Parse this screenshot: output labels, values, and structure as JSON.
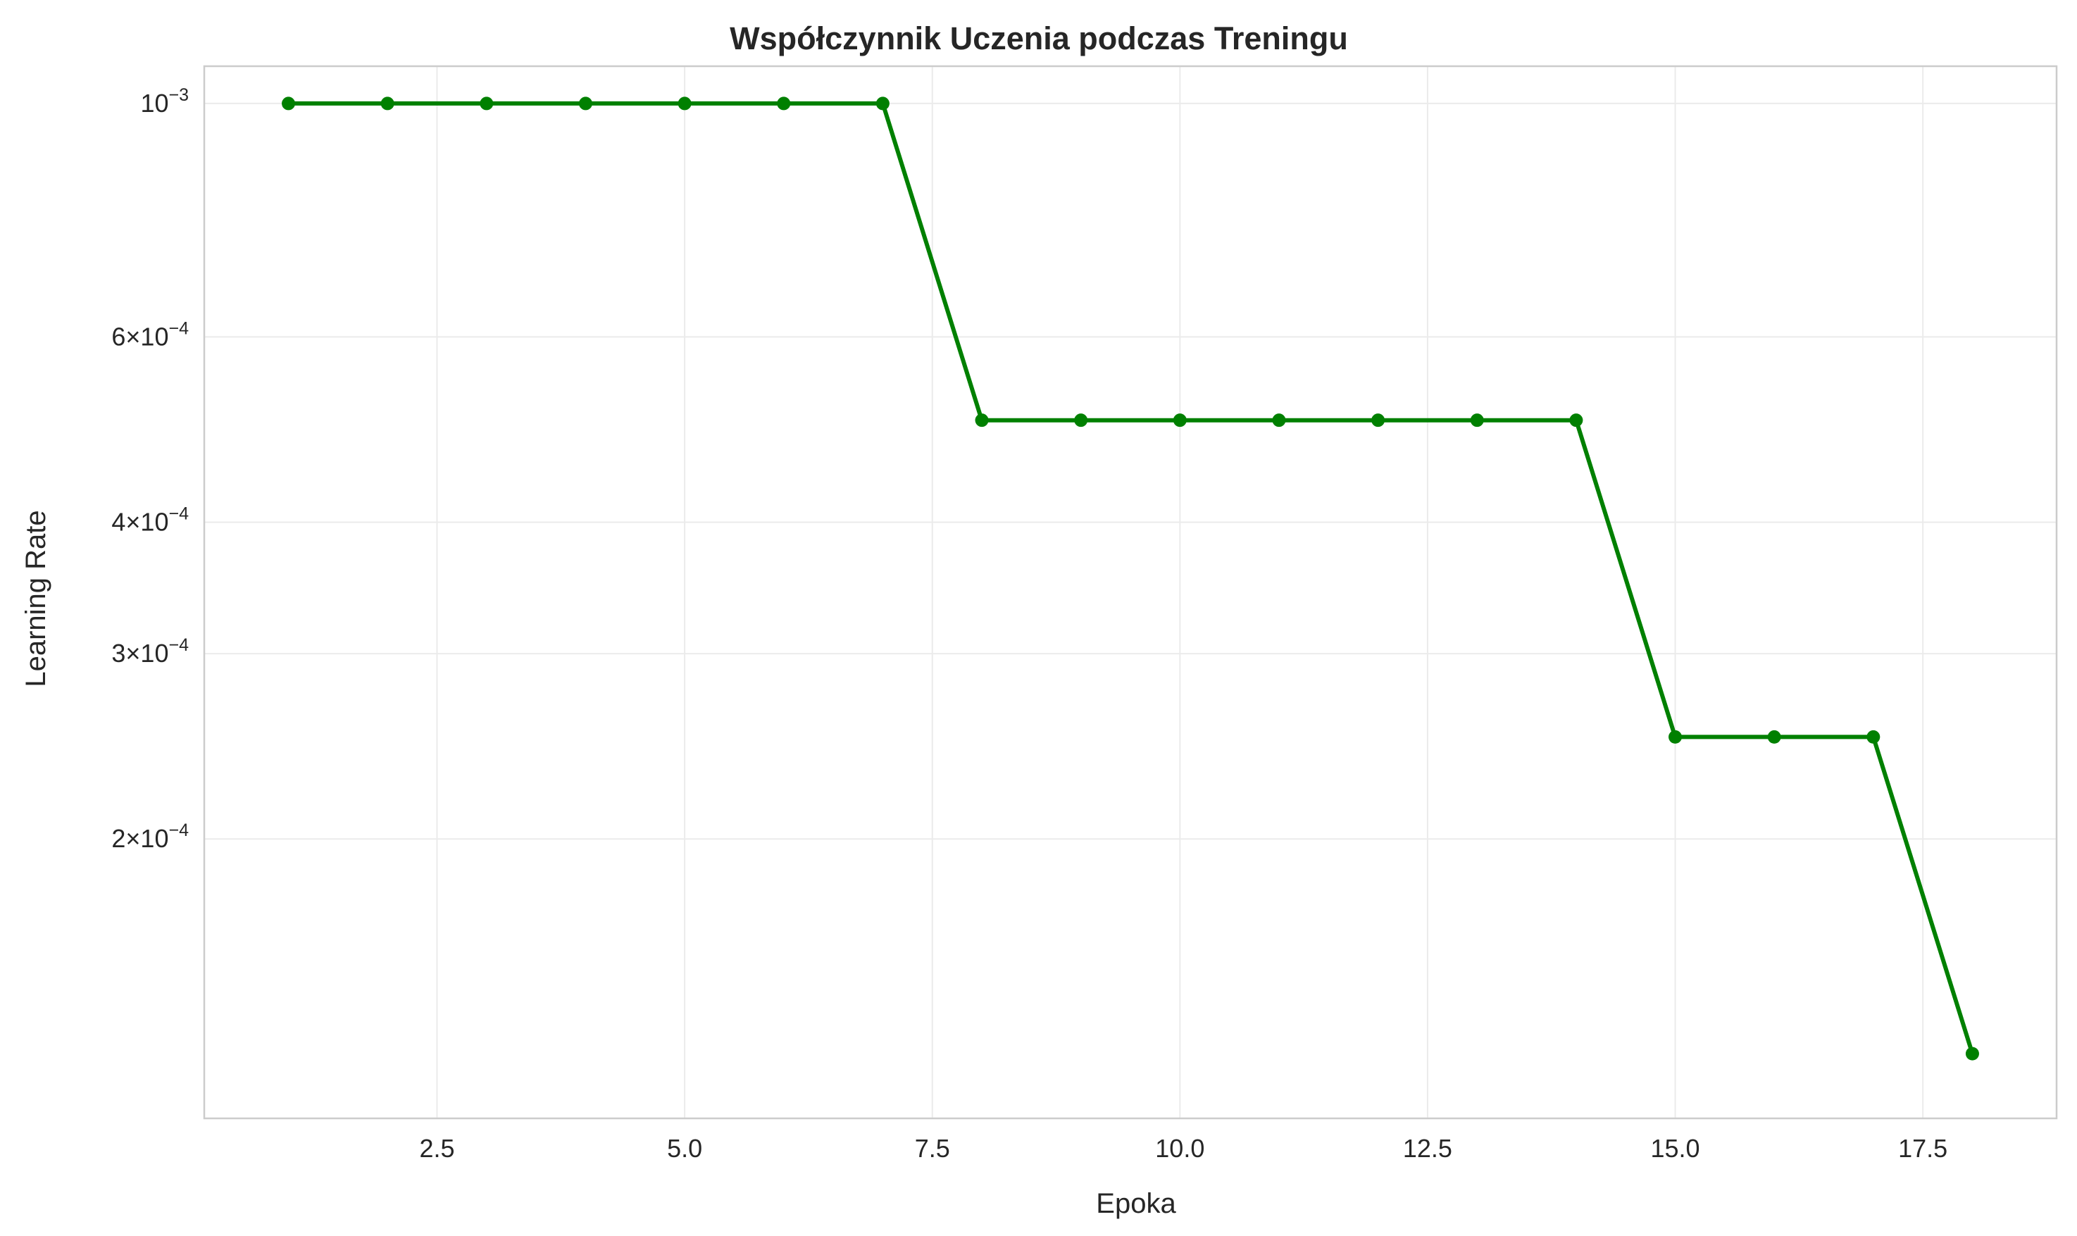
{
  "chart_data": {
    "type": "line",
    "title": "Współczynnik Uczenia podczas Treningu",
    "xlabel": "Epoka",
    "ylabel": "Learning Rate",
    "yscale": "log",
    "xlim": [
      0.15,
      18.85
    ],
    "ylim": [
      0.0001085,
      0.001085
    ],
    "grid": true,
    "legend": "none",
    "color": "#008000",
    "x": [
      1,
      2,
      3,
      4,
      5,
      6,
      7,
      8,
      9,
      10,
      11,
      12,
      13,
      14,
      15,
      16,
      17,
      18
    ],
    "series": [
      {
        "values": [
          0.001,
          0.001,
          0.001,
          0.001,
          0.001,
          0.001,
          0.001,
          0.0005,
          0.0005,
          0.0005,
          0.0005,
          0.0005,
          0.0005,
          0.0005,
          0.00025,
          0.00025,
          0.00025,
          0.000125
        ]
      }
    ],
    "xticks": [
      {
        "value": 2.5,
        "label": "2.5"
      },
      {
        "value": 5.0,
        "label": "5.0"
      },
      {
        "value": 7.5,
        "label": "7.5"
      },
      {
        "value": 10.0,
        "label": "10.0"
      },
      {
        "value": 12.5,
        "label": "12.5"
      },
      {
        "value": 15.0,
        "label": "15.0"
      },
      {
        "value": 17.5,
        "label": "17.5"
      }
    ],
    "yticks": [
      {
        "value": 0.001,
        "mantissa": "",
        "exponent": "−3"
      },
      {
        "value": 0.0006,
        "mantissa": "6",
        "exponent": "−4"
      },
      {
        "value": 0.0004,
        "mantissa": "4",
        "exponent": "−4"
      },
      {
        "value": 0.0003,
        "mantissa": "3",
        "exponent": "−4"
      },
      {
        "value": 0.0002,
        "mantissa": "2",
        "exponent": "−4"
      }
    ]
  }
}
